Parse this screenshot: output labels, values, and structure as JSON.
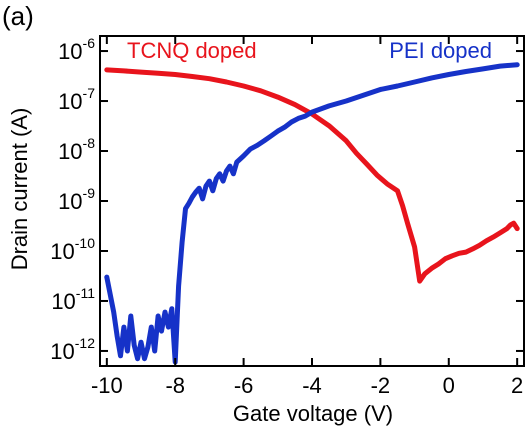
{
  "panel_label": "(a)",
  "chart_data": {
    "type": "line",
    "title": "",
    "xlabel": "Gate voltage  (V)",
    "ylabel": "Drain current  (A)",
    "xlim": [
      -10.2,
      2.2
    ],
    "ylim": [
      5e-13,
      2e-06
    ],
    "y_scale": "log",
    "grid": false,
    "x_ticks": [
      {
        "value": -10,
        "label": "-10"
      },
      {
        "value": -8,
        "label": "-8"
      },
      {
        "value": -6,
        "label": "-6"
      },
      {
        "value": -4,
        "label": "-4"
      },
      {
        "value": -2,
        "label": "-2"
      },
      {
        "value": 0,
        "label": "0"
      },
      {
        "value": 2,
        "label": "2"
      }
    ],
    "y_ticks": [
      {
        "value": 1e-06,
        "base": "10",
        "exp": "-6"
      },
      {
        "value": 1e-07,
        "base": "10",
        "exp": "-7"
      },
      {
        "value": 1e-08,
        "base": "10",
        "exp": "-8"
      },
      {
        "value": 1e-09,
        "base": "10",
        "exp": "-9"
      },
      {
        "value": 1e-10,
        "base": "10",
        "exp": "-10"
      },
      {
        "value": 1e-11,
        "base": "10",
        "exp": "-11"
      },
      {
        "value": 1e-12,
        "base": "10",
        "exp": "-12"
      }
    ],
    "series": [
      {
        "name": "TCNQ doped",
        "color": "#e8141c",
        "points": [
          [
            -10,
            4.2e-07
          ],
          [
            -9.5,
            4e-07
          ],
          [
            -9,
            3.8e-07
          ],
          [
            -8.5,
            3.6e-07
          ],
          [
            -8,
            3.4e-07
          ],
          [
            -7.5,
            3.1e-07
          ],
          [
            -7,
            2.8e-07
          ],
          [
            -6.5,
            2.4e-07
          ],
          [
            -6,
            2e-07
          ],
          [
            -5.5,
            1.6e-07
          ],
          [
            -5,
            1.2e-07
          ],
          [
            -4.5,
            8.5e-08
          ],
          [
            -4,
            5.5e-08
          ],
          [
            -3.5,
            3.2e-08
          ],
          [
            -3,
            1.6e-08
          ],
          [
            -2.7,
            9e-09
          ],
          [
            -2.4,
            5.5e-09
          ],
          [
            -2.1,
            3.3e-09
          ],
          [
            -1.8,
            2.2e-09
          ],
          [
            -1.5,
            1.6e-09
          ],
          [
            -1.35,
            8e-10
          ],
          [
            -1.2,
            3.5e-10
          ],
          [
            -1.0,
            1.2e-10
          ],
          [
            -0.85,
            2.5e-11
          ],
          [
            -0.7,
            3.5e-11
          ],
          [
            -0.5,
            4.5e-11
          ],
          [
            -0.3,
            5.5e-11
          ],
          [
            -0.1,
            7e-11
          ],
          [
            0.1,
            8e-11
          ],
          [
            0.3,
            9e-11
          ],
          [
            0.5,
            9.5e-11
          ],
          [
            0.7,
            1.1e-10
          ],
          [
            0.9,
            1.3e-10
          ],
          [
            1.1,
            1.6e-10
          ],
          [
            1.3,
            1.9e-10
          ],
          [
            1.5,
            2.3e-10
          ],
          [
            1.7,
            2.8e-10
          ],
          [
            1.8,
            3.3e-10
          ],
          [
            1.9,
            3.6e-10
          ],
          [
            2.0,
            2.8e-10
          ]
        ]
      },
      {
        "name": "PEI doped",
        "color": "#1632c8",
        "points": [
          [
            -10,
            3e-11
          ],
          [
            -9.8,
            6e-12
          ],
          [
            -9.7,
            2e-12
          ],
          [
            -9.6,
            8e-13
          ],
          [
            -9.5,
            3e-12
          ],
          [
            -9.4,
            1e-12
          ],
          [
            -9.3,
            5e-12
          ],
          [
            -9.2,
            1.3e-12
          ],
          [
            -9.1,
            7e-13
          ],
          [
            -9.0,
            1.5e-12
          ],
          [
            -8.9,
            7e-13
          ],
          [
            -8.8,
            1.2e-12
          ],
          [
            -8.7,
            3e-12
          ],
          [
            -8.6,
            1e-12
          ],
          [
            -8.5,
            5e-12
          ],
          [
            -8.4,
            2.5e-12
          ],
          [
            -8.3,
            6e-12
          ],
          [
            -8.2,
            3e-12
          ],
          [
            -8.1,
            7e-12
          ],
          [
            -8.0,
            6e-13
          ],
          [
            -7.9,
            2e-11
          ],
          [
            -7.8,
            1.5e-10
          ],
          [
            -7.7,
            7e-10
          ],
          [
            -7.6,
            9e-10
          ],
          [
            -7.5,
            1.2e-09
          ],
          [
            -7.4,
            1.5e-09
          ],
          [
            -7.3,
            1.8e-09
          ],
          [
            -7.2,
            1.1e-09
          ],
          [
            -7.1,
            2e-09
          ],
          [
            -7.0,
            2.5e-09
          ],
          [
            -6.9,
            1.6e-09
          ],
          [
            -6.8,
            2.8e-09
          ],
          [
            -6.7,
            3.5e-09
          ],
          [
            -6.6,
            2.5e-09
          ],
          [
            -6.5,
            4e-09
          ],
          [
            -6.4,
            5e-09
          ],
          [
            -6.3,
            3.5e-09
          ],
          [
            -6.2,
            6e-09
          ],
          [
            -6.0,
            8e-09
          ],
          [
            -5.8,
            1.1e-08
          ],
          [
            -5.6,
            1.3e-08
          ],
          [
            -5.4,
            1.6e-08
          ],
          [
            -5.2,
            2e-08
          ],
          [
            -5.0,
            2.5e-08
          ],
          [
            -4.8,
            3e-08
          ],
          [
            -4.6,
            3.8e-08
          ],
          [
            -4.4,
            4.5e-08
          ],
          [
            -4.2,
            5e-08
          ],
          [
            -4.0,
            6e-08
          ],
          [
            -3.5,
            8e-08
          ],
          [
            -3.0,
            1e-07
          ],
          [
            -2.5,
            1.3e-07
          ],
          [
            -2.0,
            1.7e-07
          ],
          [
            -1.5,
            2e-07
          ],
          [
            -1.0,
            2.4e-07
          ],
          [
            -0.5,
            2.9e-07
          ],
          [
            0,
            3.4e-07
          ],
          [
            0.5,
            3.9e-07
          ],
          [
            1.0,
            4.4e-07
          ],
          [
            1.5,
            5e-07
          ],
          [
            2.0,
            5.3e-07
          ]
        ]
      }
    ]
  }
}
